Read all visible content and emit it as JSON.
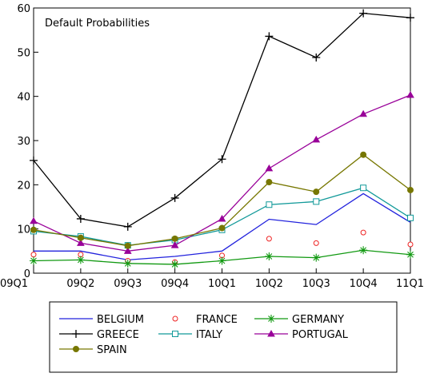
{
  "chart_data": {
    "type": "line",
    "title": "Default Probabilities",
    "categories": [
      "09Q1",
      "09Q2",
      "09Q3",
      "09Q4",
      "10Q1",
      "10Q2",
      "10Q3",
      "10Q4",
      "11Q1"
    ],
    "ylim": [
      0,
      60
    ],
    "yticks": [
      0,
      10,
      20,
      30,
      40,
      50,
      60
    ],
    "grid": false,
    "legend_position": "bottom",
    "series": [
      {
        "name": "BELGIUM",
        "color": "#2222dd",
        "marker": "none",
        "line": true,
        "values": [
          5.0,
          5.0,
          3.0,
          3.8,
          5.0,
          12.2,
          11.0,
          18.0,
          11.5
        ]
      },
      {
        "name": "FRANCE",
        "color": "#ee2222",
        "marker": "circle-open",
        "line": false,
        "values": [
          4.2,
          4.2,
          2.8,
          2.5,
          4.0,
          7.8,
          6.8,
          9.2,
          6.5
        ]
      },
      {
        "name": "GERMANY",
        "color": "#119911",
        "marker": "asterisk",
        "line": true,
        "values": [
          2.8,
          3.0,
          2.2,
          2.0,
          2.8,
          3.8,
          3.5,
          5.2,
          4.2
        ]
      },
      {
        "name": "GREECE",
        "color": "#000000",
        "marker": "plus",
        "line": true,
        "values": [
          25.5,
          12.3,
          10.5,
          17.0,
          25.8,
          53.6,
          48.8,
          58.8,
          57.8
        ]
      },
      {
        "name": "ITALY",
        "color": "#119999",
        "marker": "square-open",
        "line": true,
        "values": [
          9.5,
          8.3,
          6.3,
          7.5,
          9.8,
          15.5,
          16.2,
          19.3,
          12.5
        ]
      },
      {
        "name": "PORTUGAL",
        "color": "#990099",
        "marker": "triangle",
        "line": true,
        "values": [
          11.8,
          6.8,
          5.0,
          6.3,
          12.3,
          23.7,
          30.2,
          36.0,
          40.3
        ]
      },
      {
        "name": "SPAIN",
        "color": "#777700",
        "marker": "circle",
        "line": true,
        "values": [
          9.8,
          8.0,
          6.2,
          7.8,
          10.2,
          20.6,
          18.4,
          26.8,
          18.8
        ]
      }
    ]
  }
}
